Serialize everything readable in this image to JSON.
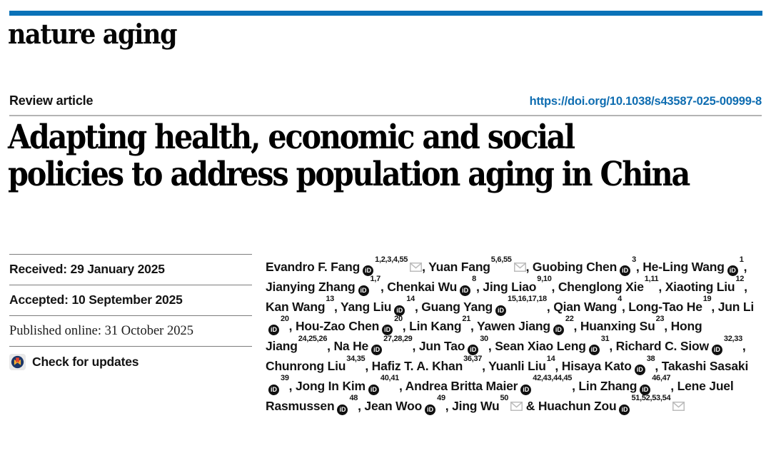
{
  "masthead": {
    "journal": "nature aging"
  },
  "header": {
    "article_type": "Review article",
    "doi": "https://doi.org/10.1038/s43587-025-00999-8"
  },
  "title": "Adapting health, economic and social policies to address population aging in China",
  "title_lines": {
    "0": "Adapting health, economic and social",
    "1": "policies to address population aging in China"
  },
  "dates": {
    "received": "Received: 29 January 2025",
    "accepted": "Accepted: 10 September 2025",
    "published": "Published online: 31 October 2025"
  },
  "check_updates": {
    "label": "Check for updates"
  },
  "icons": {
    "orcid_glyph": "iD",
    "orcid_name": "orcid-icon",
    "envelope_name": "envelope-icon",
    "crossmark_name": "crossmark-icon"
  },
  "colors": {
    "brand_bar_blue": "#0a72b8",
    "link_blue": "#0f6db1",
    "rule_gray": "#7d7d7d",
    "header_rule_gray": "#b4b4b4",
    "orcid_black": "#101010",
    "envelope_gray": "#bcbcbc",
    "crossmark_bg": "#e9e9e9",
    "crossmark_navy": "#1c3668",
    "crossmark_red": "#e8432d",
    "crossmark_yellow": "#f6b733"
  },
  "authors": {
    "ampersand": "&",
    "separator": ", ",
    "list": [
      {
        "name": "Evandro F. Fang",
        "orcid": true,
        "sup": "1,2,3,4,55",
        "mail": true
      },
      {
        "name": "Yuan Fang",
        "orcid": false,
        "sup": "5,6,55",
        "mail": true
      },
      {
        "name": "Guobing Chen",
        "orcid": true,
        "sup": "3",
        "mail": false
      },
      {
        "name": "He-Ling Wang",
        "orcid": true,
        "sup": "1",
        "mail": false
      },
      {
        "name": "Jianying Zhang",
        "orcid": true,
        "sup": "1,7",
        "mail": false
      },
      {
        "name": "Chenkai Wu",
        "orcid": true,
        "sup": "8",
        "mail": false
      },
      {
        "name": "Jing Liao",
        "orcid": false,
        "sup": "9,10",
        "mail": false
      },
      {
        "name": "Chenglong Xie",
        "orcid": false,
        "sup": "1,11",
        "mail": false
      },
      {
        "name": "Xiaoting Liu",
        "orcid": false,
        "sup": "12",
        "mail": false
      },
      {
        "name": "Kan Wang",
        "orcid": false,
        "sup": "13",
        "mail": false
      },
      {
        "name": "Yang Liu",
        "orcid": true,
        "sup": "14",
        "mail": false
      },
      {
        "name": "Guang Yang",
        "orcid": true,
        "sup": "15,16,17,18",
        "mail": false
      },
      {
        "name": "Qian Wang",
        "orcid": false,
        "sup": "4",
        "mail": false
      },
      {
        "name": "Long-Tao He",
        "orcid": false,
        "sup": "19",
        "mail": false
      },
      {
        "name": "Jun Li",
        "orcid": true,
        "sup": "20",
        "mail": false
      },
      {
        "name": "Hou-Zao Chen",
        "orcid": true,
        "sup": "20",
        "mail": false
      },
      {
        "name": "Lin Kang",
        "orcid": false,
        "sup": "21",
        "mail": false
      },
      {
        "name": "Yawen Jiang",
        "orcid": true,
        "sup": "22",
        "mail": false
      },
      {
        "name": "Huanxing Su",
        "orcid": false,
        "sup": "23",
        "mail": false
      },
      {
        "name": "Hong Jiang",
        "orcid": false,
        "sup": "24,25,26",
        "mail": false
      },
      {
        "name": "Na He",
        "orcid": true,
        "sup": "27,28,29",
        "mail": false
      },
      {
        "name": "Jun Tao",
        "orcid": true,
        "sup": "30",
        "mail": false
      },
      {
        "name": "Sean Xiao Leng",
        "orcid": true,
        "sup": "31",
        "mail": false
      },
      {
        "name": "Richard C. Siow",
        "orcid": true,
        "sup": "32,33",
        "mail": false
      },
      {
        "name": "Chunrong Liu",
        "orcid": false,
        "sup": "34,35",
        "mail": false
      },
      {
        "name": "Hafiz T. A. Khan",
        "orcid": false,
        "sup": "36,37",
        "mail": false
      },
      {
        "name": "Yuanli Liu",
        "orcid": false,
        "sup": "14",
        "mail": false
      },
      {
        "name": "Hisaya Kato",
        "orcid": true,
        "sup": "38",
        "mail": false
      },
      {
        "name": "Takashi Sasaki",
        "orcid": true,
        "sup": "39",
        "mail": false
      },
      {
        "name": "Jong In Kim",
        "orcid": true,
        "sup": "40,41",
        "mail": false
      },
      {
        "name": "Andrea Britta Maier",
        "orcid": true,
        "sup": "42,43,44,45",
        "mail": false
      },
      {
        "name": "Lin Zhang",
        "orcid": true,
        "sup": "46,47",
        "mail": false
      },
      {
        "name": "Lene Juel Rasmussen",
        "orcid": true,
        "sup": "48",
        "mail": false
      },
      {
        "name": "Jean Woo",
        "orcid": true,
        "sup": "49",
        "mail": false
      },
      {
        "name": "Jing Wu",
        "orcid": false,
        "sup": "50",
        "mail": true
      },
      {
        "name": "Huachun Zou",
        "orcid": true,
        "sup": "51,52,53,54",
        "mail": true
      }
    ]
  }
}
